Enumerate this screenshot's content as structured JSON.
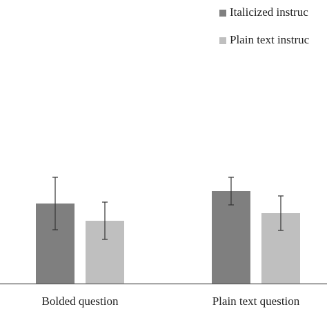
{
  "chart_data": {
    "type": "bar",
    "categories": [
      "Bolded question",
      "Plain text question"
    ],
    "series": [
      {
        "name": "Italicized instruc",
        "color": "#7f7f7f",
        "values": [
          116,
          134
        ],
        "errors": [
          38,
          20
        ]
      },
      {
        "name": "Plain text instruc",
        "color": "#bfbfbf",
        "values": [
          91,
          102
        ],
        "errors": [
          27,
          25
        ]
      }
    ]
  }
}
